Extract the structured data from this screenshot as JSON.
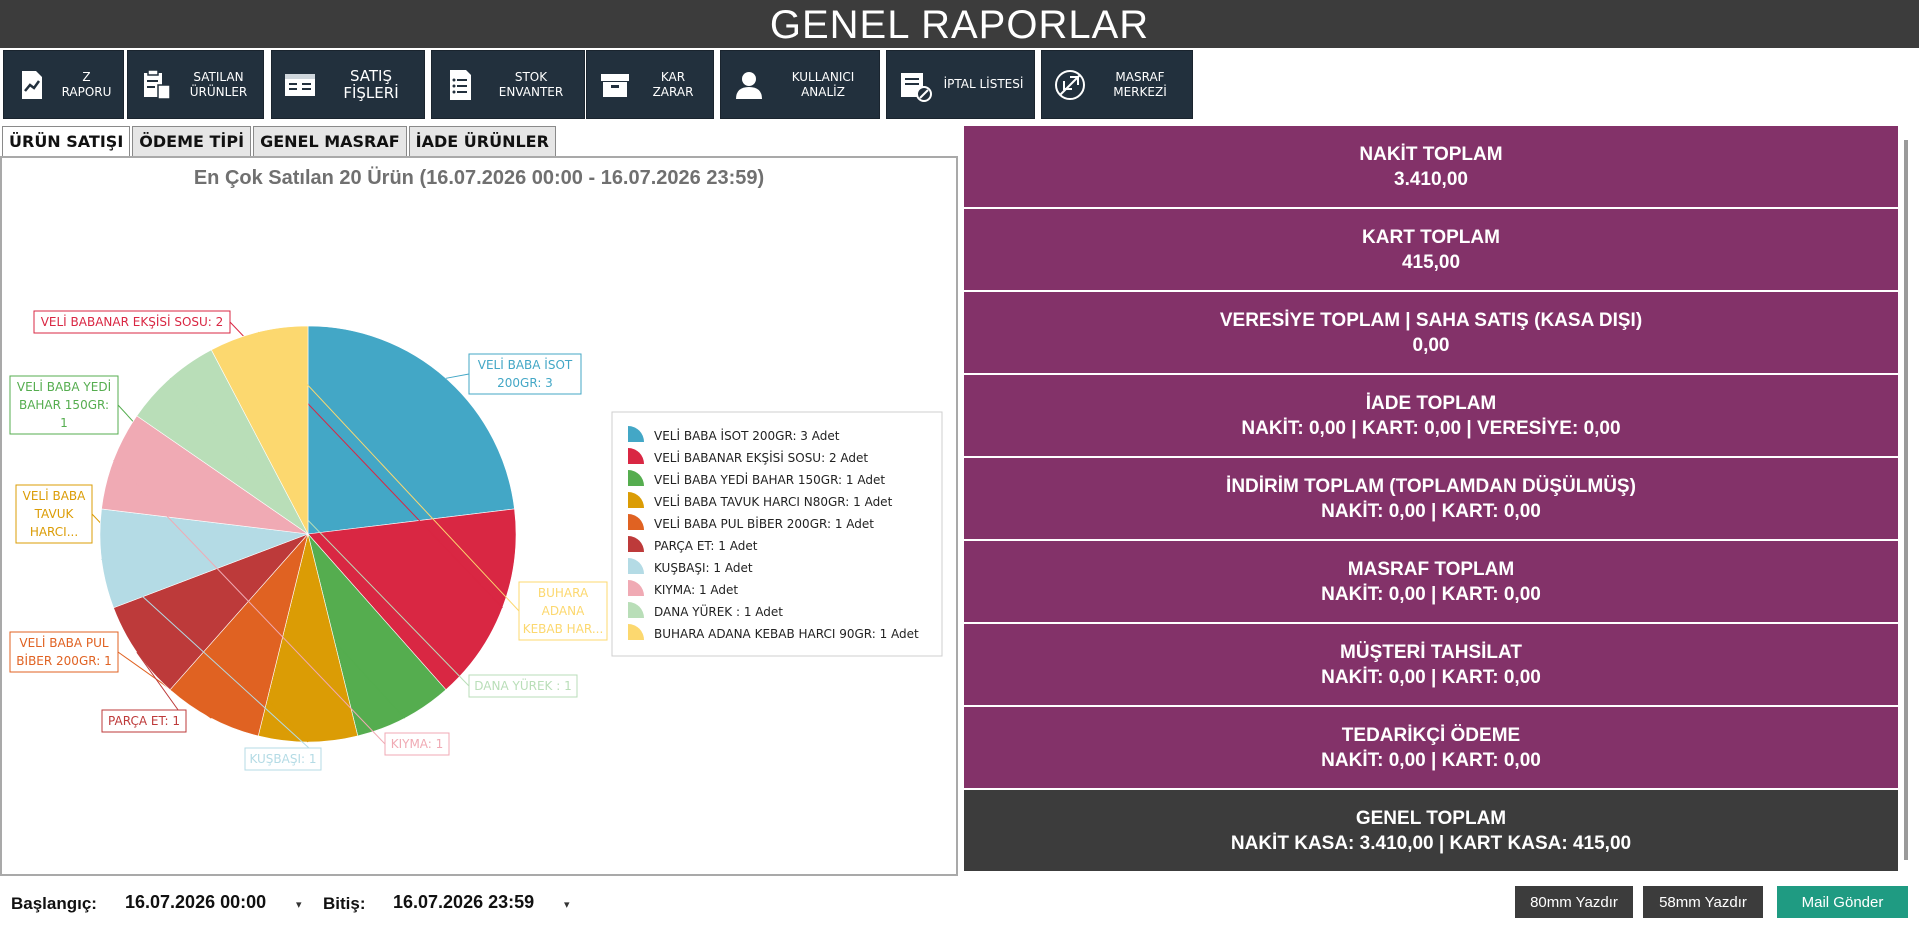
{
  "window": {
    "title": "GENEL RAPORLAR"
  },
  "toolbar": [
    {
      "label": "Z RAPORU",
      "icon": "report-chart-icon"
    },
    {
      "label": "SATILAN ÜRÜNLER",
      "icon": "sold-products-icon"
    },
    {
      "label": "SATIŞ FİŞLERİ",
      "icon": "receipts-icon"
    },
    {
      "label": "STOK ENVANTER",
      "icon": "stock-list-icon"
    },
    {
      "label": "KAR ZARAR",
      "icon": "profit-box-icon"
    },
    {
      "label": "KULLANICI ANALİZ",
      "icon": "user-icon"
    },
    {
      "label": "İPTAL LİSTESİ",
      "icon": "cancel-list-icon"
    },
    {
      "label": "MASRAF MERKEZİ",
      "icon": "expense-icon"
    }
  ],
  "tabs": [
    "ÜRÜN SATIŞI",
    "ÖDEME TİPİ",
    "GENEL MASRAF",
    "İADE ÜRÜNLER"
  ],
  "chart_data": {
    "type": "pie",
    "title": "En Çok Satılan 20 Ürün (16.07.2026 00:00 - 16.07.2026 23:59)",
    "slices": [
      {
        "label": "VELİ BABA İSOT 200GR: 3",
        "legend": "VELİ BABA İSOT 200GR: 3 Adet",
        "value": 3,
        "color": "#43a7c6"
      },
      {
        "label": "VELİ BABANAR EKŞİSİ SOSU: 2",
        "legend": "VELİ BABANAR EKŞİSİ SOSU: 2 Adet",
        "value": 2,
        "color": "#d92743"
      },
      {
        "label": "VELİ BABA YEDİ BAHAR 150GR: 1",
        "legend": "VELİ BABA YEDİ BAHAR 150GR: 1 Adet",
        "value": 1,
        "color": "#55ad4f"
      },
      {
        "label": "VELİ BABA TAVUK HARCI...",
        "legend": "VELİ BABA TAVUK HARCI N80GR: 1 Adet",
        "value": 1,
        "color": "#db9c05"
      },
      {
        "label": "VELİ BABA PUL BİBER 200GR: 1",
        "legend": "VELİ BABA PUL BİBER 200GR: 1 Adet",
        "value": 1,
        "color": "#e06222"
      },
      {
        "label": "PARÇA ET: 1",
        "legend": "PARÇA ET: 1 Adet",
        "value": 1,
        "color": "#bd3a3a"
      },
      {
        "label": "KUŞBAŞI: 1",
        "legend": "KUŞBAŞI: 1 Adet",
        "value": 1,
        "color": "#b4dbe5"
      },
      {
        "label": "KIYMA: 1",
        "legend": "KIYMA: 1 Adet",
        "value": 1,
        "color": "#f0aab4"
      },
      {
        "label": "DANA YÜREK : 1",
        "legend": "DANA YÜREK : 1 Adet",
        "value": 1,
        "color": "#b9deb8"
      },
      {
        "label": "BUHARA ADANA KEBAB HAR...",
        "legend": "BUHARA ADANA KEBAB HARCI 90GR: 1 Adet",
        "value": 1,
        "color": "#fcd86f"
      }
    ],
    "legend_position": "right"
  },
  "summary": [
    {
      "title": "NAKİT TOPLAM",
      "value": "3.410,00"
    },
    {
      "title": "KART TOPLAM",
      "value": "415,00"
    },
    {
      "title": "VERESİYE TOPLAM | SAHA SATIŞ (KASA DIŞI)",
      "value": "0,00"
    },
    {
      "title": "İADE TOPLAM",
      "value": "NAKİT: 0,00  |  KART: 0,00  |  VERESİYE: 0,00"
    },
    {
      "title": "İNDİRİM TOPLAM (TOPLAMDAN DÜŞÜLMÜŞ)",
      "value": "NAKİT: 0,00  |  KART: 0,00"
    },
    {
      "title": "MASRAF TOPLAM",
      "value": "NAKİT: 0,00  |  KART: 0,00"
    },
    {
      "title": "MÜŞTERİ TAHSİLAT",
      "value": "NAKİT: 0,00  |  KART: 0,00"
    },
    {
      "title": "TEDARİKÇİ ÖDEME",
      "value": "NAKİT: 0,00  |  KART: 0,00"
    },
    {
      "title": "GENEL TOPLAM",
      "value": "NAKİT KASA: 3.410,00  |  KART KASA: 415,00"
    }
  ],
  "colors": {
    "card": "#833269",
    "card_total": "#3c3c3c",
    "toolbar": "#22303d",
    "mail": "#1f9b82",
    "print": "#3c3c3c"
  },
  "filters": {
    "start_label": "Başlangıç:",
    "start_value": "16.07.2026 00:00",
    "end_label": "Bitiş:",
    "end_value": "16.07.2026 23:59",
    "dropdown_glyph": "▾"
  },
  "actions": {
    "print80": "80mm Yazdır",
    "print58": "58mm Yazdır",
    "mail": "Mail Gönder"
  }
}
